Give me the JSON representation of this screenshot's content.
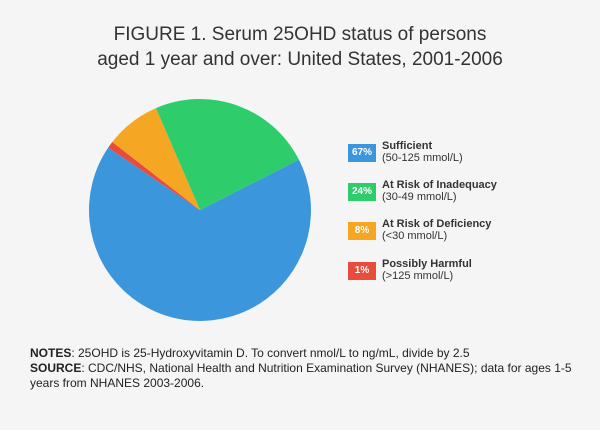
{
  "title_line1": "FIGURE 1. Serum 25OHD status of persons",
  "title_line2": "aged 1 year and over: United States, 2001-2006",
  "notes": {
    "notes_label": "NOTES",
    "notes_text": ": 25OHD is 25-Hydroxyvitamin D. To convert nmol/L to ng/mL, divide by 2.5",
    "source_label": "SOURCE",
    "source_text": ": CDC/NHS, National Health and Nutrition Examination Survey (NHANES); data for ages 1-5 years from NHANES 2003-2006."
  },
  "chart_data": {
    "type": "pie",
    "title": "FIGURE 1. Serum 25OHD status of persons aged 1 year and over: United States, 2001-2006",
    "legend_placement": "right",
    "slices": [
      {
        "label": "Sufficient",
        "range": "(50-125 mmol/L)",
        "value": 67,
        "display": "67%",
        "color": "#3c96dc"
      },
      {
        "label": "At Risk of Inadequacy",
        "range": "(30-49 mmol/L)",
        "value": 24,
        "display": "24%",
        "color": "#2ecc6b"
      },
      {
        "label": "At Risk of Deficiency",
        "range": "(<30 mmol/L)",
        "value": 8,
        "display": "8%",
        "color": "#f5a623"
      },
      {
        "label": "Possibly Harmful",
        "range": "(>125 mmol/L)",
        "value": 1,
        "display": "1%",
        "color": "#e74c3c"
      }
    ]
  }
}
